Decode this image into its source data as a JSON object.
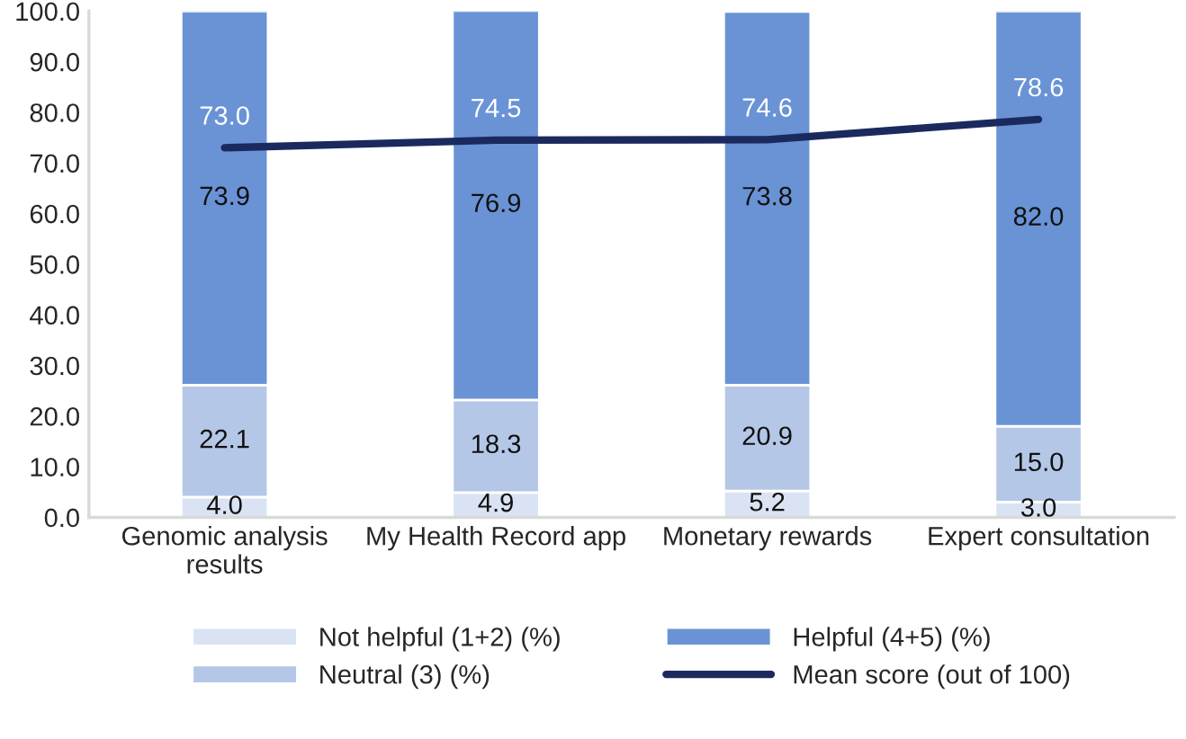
{
  "chart_data": {
    "type": "bar",
    "stacked": true,
    "categories": [
      "Genomic analysis results",
      "My Health Record app",
      "Monetary rewards",
      "Expert consultation"
    ],
    "series": [
      {
        "name": "Not helpful (1+2) (%)",
        "color": "#dae3f3",
        "values": [
          4.0,
          4.9,
          5.2,
          3.0
        ],
        "value_labels": [
          "4.0",
          "4.9",
          "5.2",
          "3.0"
        ]
      },
      {
        "name": "Neutral (3) (%)",
        "color": "#b4c7e7",
        "values": [
          22.1,
          18.3,
          20.9,
          15.0
        ],
        "value_labels": [
          "22.1",
          "18.3",
          "20.9",
          "15.0"
        ]
      },
      {
        "name": "Helpful (4+5) (%)",
        "color": "#6a93d6",
        "values": [
          73.9,
          76.9,
          73.8,
          82.0
        ],
        "value_labels": [
          "73.9",
          "76.9",
          "73.8",
          "82.0"
        ]
      },
      {
        "name": "Mean score (out of 100)",
        "type": "line",
        "color": "#1b2a5e",
        "values": [
          73.0,
          74.5,
          74.6,
          78.6
        ],
        "value_labels": [
          "73.0",
          "74.5",
          "74.6",
          "78.6"
        ]
      }
    ],
    "ylim": [
      0,
      100
    ],
    "yticks": [
      {
        "value": 0,
        "label": "0.0"
      },
      {
        "value": 10,
        "label": "10.0"
      },
      {
        "value": 20,
        "label": "20.0"
      },
      {
        "value": 30,
        "label": "30.0"
      },
      {
        "value": 40,
        "label": "40.0"
      },
      {
        "value": 50,
        "label": "50.0"
      },
      {
        "value": 60,
        "label": "60.0"
      },
      {
        "value": 70,
        "label": "70.0"
      },
      {
        "value": 80,
        "label": "80.0"
      },
      {
        "value": 90,
        "label": "90.0"
      },
      {
        "value": 100,
        "label": "100.0"
      }
    ],
    "legend": "bottom",
    "grid": false,
    "marker": "none"
  }
}
